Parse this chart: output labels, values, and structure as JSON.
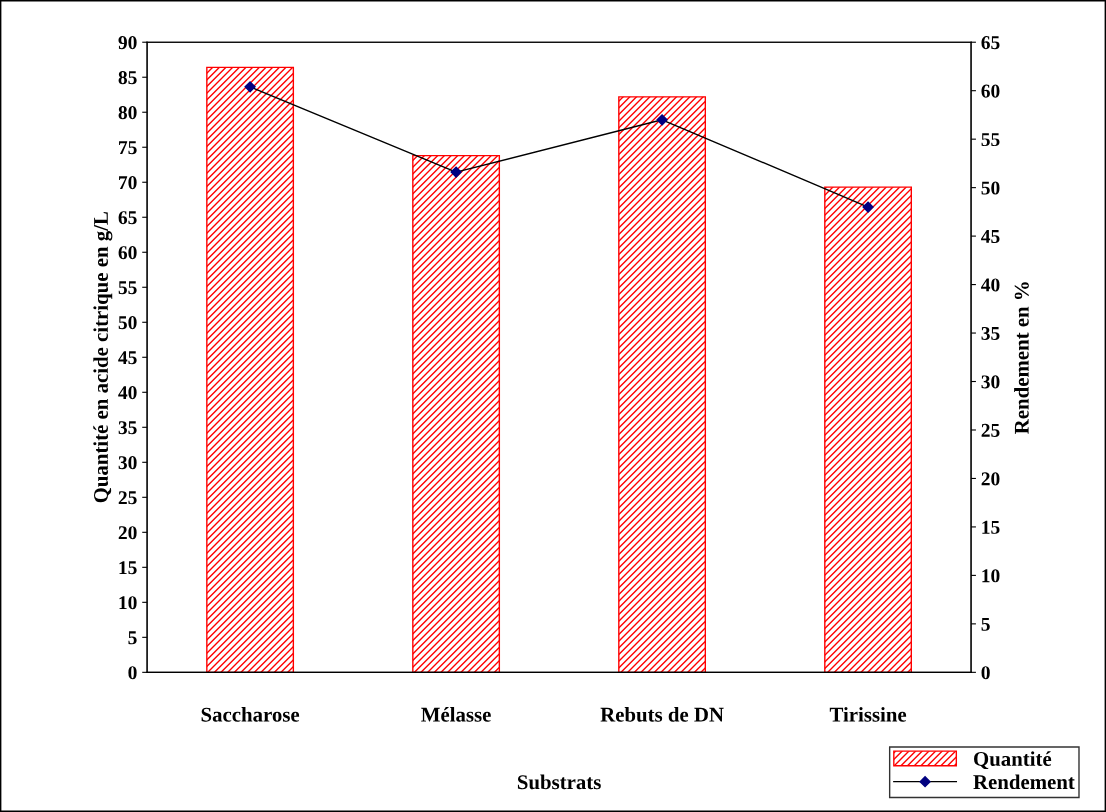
{
  "chart_data": {
    "type": "bar",
    "xlabel": "Substrats",
    "ylabel": "Quantité en acide citrique en g/L",
    "y2label": "Rendement en %",
    "categories": [
      "Saccharose",
      "Mélasse",
      "Rebuts de DN",
      "Tirissine"
    ],
    "series": [
      {
        "name": "Quantité",
        "color": "#ff0000",
        "values": [
          86.4,
          73.8,
          82.2,
          69.3
        ]
      },
      {
        "name": "Rendement",
        "type": "line",
        "axis": "y2",
        "color": "#000080",
        "values": [
          60.4,
          51.6,
          57.0,
          48.0
        ]
      }
    ],
    "ylim": [
      0,
      90
    ],
    "yticks": [
      0,
      5,
      10,
      15,
      20,
      25,
      30,
      35,
      40,
      45,
      50,
      55,
      60,
      65,
      70,
      75,
      80,
      85,
      90
    ],
    "y2lim": [
      0,
      65
    ],
    "y2ticks": [
      0,
      5,
      10,
      15,
      20,
      25,
      30,
      35,
      40,
      45,
      50,
      55,
      60,
      65
    ],
    "marker": "diamond",
    "legend": "bottom right",
    "grid": false
  }
}
